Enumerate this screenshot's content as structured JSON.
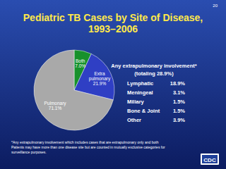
{
  "chart_data": {
    "type": "pie",
    "title": "Pediatric TB Cases by Site of Disease, 1993–2006",
    "categories": [
      "Both",
      "Extra pulmonary",
      "Pulmonary"
    ],
    "values": [
      7.0,
      21.9,
      71.1
    ],
    "value_labels": [
      "7.0%",
      "21.9%",
      "71.1%"
    ],
    "colors": [
      "#17912b",
      "#2f3fc4",
      "#a9a9a9"
    ],
    "data_labels": true
  },
  "slide": {
    "page_number": "20",
    "breakdown": {
      "heading": "Any extrapulmonary involvement*",
      "subheading": "(totaling 28.9%)",
      "rows": [
        {
          "label": "Lymphatic",
          "value": "18.9%"
        },
        {
          "label": "Meningeal",
          "value": "3.1%"
        },
        {
          "label": "Miliary",
          "value": "1.5%"
        },
        {
          "label": "Bone & Joint",
          "value": "1.5%"
        },
        {
          "label": "Other",
          "value": "3.9%"
        }
      ]
    },
    "footnote": [
      "*Any extrapulmonary involvement which includes cases that are extrapulmonary only and both",
      "Patients may have more than one disease site but are counted in mutually exclusive categories for",
      "surveillance purposes."
    ],
    "logo": "CDC"
  }
}
